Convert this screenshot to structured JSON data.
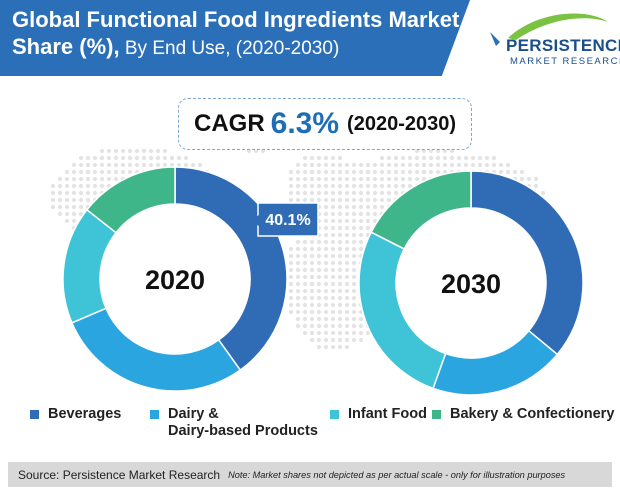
{
  "title": {
    "line1": "Global Functional Food Ingredients Market",
    "line2_bold": "Share (%),",
    "line2_rest": " By End Use, (2020-2030)"
  },
  "logo": {
    "name": "PERSISTENCE",
    "tagline": "MARKET RESEARCH"
  },
  "cagr": {
    "label": "CAGR",
    "value": "6.3%",
    "period": "(2020-2030)"
  },
  "chart_data": [
    {
      "type": "pie",
      "center_label": "2020",
      "categories": [
        "Beverages",
        "Dairy & Dairy-based Products",
        "Infant Food",
        "Bakery & Confectionery"
      ],
      "values": [
        40.1,
        28.5,
        17.0,
        14.4
      ],
      "data_labels": [
        "40.1%",
        "",
        "",
        ""
      ]
    },
    {
      "type": "pie",
      "center_label": "2030",
      "categories": [
        "Beverages",
        "Dairy & Dairy-based Products",
        "Infant Food",
        "Bakery & Confectionery"
      ],
      "values": [
        36.0,
        19.5,
        27.0,
        17.5
      ]
    }
  ],
  "colors": {
    "Beverages": "#2f6cb5",
    "Dairy & Dairy-based Products": "#2ba5e0",
    "Infant Food": "#3fc3d6",
    "Bakery & Confectionery": "#3fb68a"
  },
  "legend": [
    {
      "line1": "Beverages",
      "line2": ""
    },
    {
      "line1": "Dairy &",
      "line2": "Dairy-based Products"
    },
    {
      "line1": "Infant Food",
      "line2": ""
    },
    {
      "line1": "Bakery & Confectionery",
      "line2": ""
    }
  ],
  "footer": {
    "source": "Source: Persistence Market Research",
    "note": "Note: Market shares not depicted as per actual scale - only for illustration purposes"
  }
}
